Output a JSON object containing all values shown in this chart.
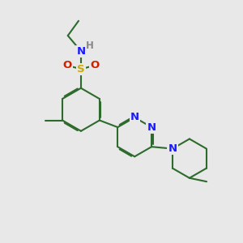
{
  "bg_color": "#e8e8e8",
  "bond_color": "#2d6b2d",
  "bond_width": 1.5,
  "atom_colors": {
    "N": "#1a1aff",
    "S": "#ccaa00",
    "O": "#cc2200",
    "H": "#888888",
    "C": "#2d6b2d"
  }
}
